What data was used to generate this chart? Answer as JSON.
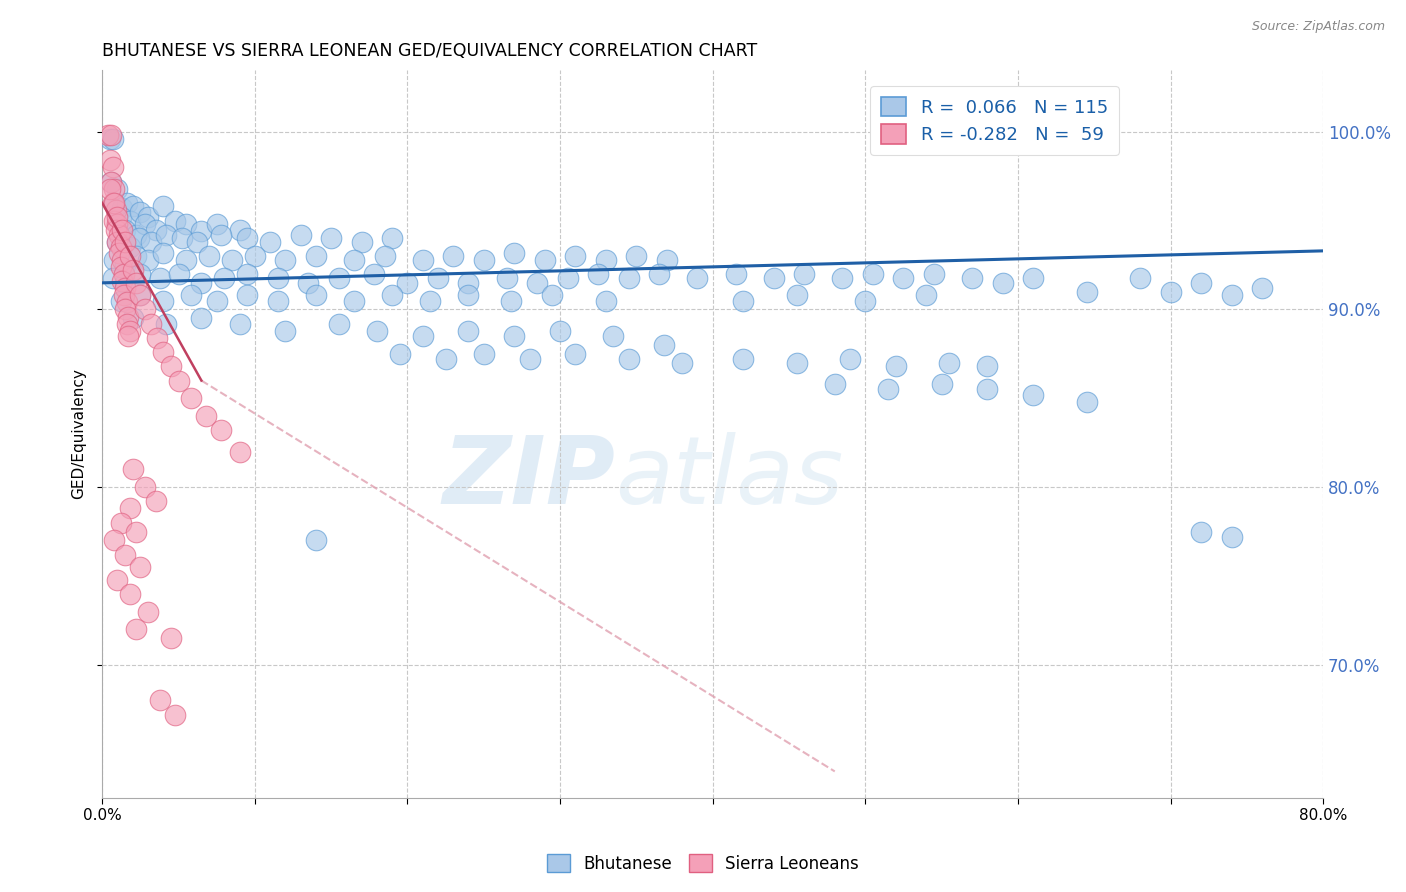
{
  "title": "BHUTANESE VS SIERRA LEONEAN GED/EQUIVALENCY CORRELATION CHART",
  "source": "Source: ZipAtlas.com",
  "ylabel": "GED/Equivalency",
  "legend_bottom": [
    "Bhutanese",
    "Sierra Leoneans"
  ],
  "blue_scatter_color": "#a8c8e8",
  "blue_edge_color": "#5b9bd5",
  "pink_scatter_color": "#f4a0b8",
  "pink_edge_color": "#e06080",
  "blue_line_color": "#1f5fa6",
  "pink_line_color": "#c04060",
  "pink_dash_color": "#e0a0b0",
  "watermark_color": "#ddeeff",
  "grid_color": "#c8c8c8",
  "background_color": "#ffffff",
  "xlim": [
    0.0,
    0.8
  ],
  "ylim": [
    0.625,
    1.035
  ],
  "blue_line": [
    0.0,
    0.915,
    0.8,
    0.933
  ],
  "pink_line_solid": [
    0.0,
    0.96,
    0.065,
    0.86
  ],
  "pink_line_dash": [
    0.065,
    0.86,
    0.48,
    0.64
  ],
  "blue_points": [
    [
      0.005,
      0.996
    ],
    [
      0.007,
      0.996
    ],
    [
      0.006,
      0.972
    ],
    [
      0.01,
      0.968
    ],
    [
      0.008,
      0.96
    ],
    [
      0.013,
      0.957
    ],
    [
      0.016,
      0.96
    ],
    [
      0.02,
      0.958
    ],
    [
      0.012,
      0.952
    ],
    [
      0.018,
      0.95
    ],
    [
      0.025,
      0.955
    ],
    [
      0.03,
      0.952
    ],
    [
      0.04,
      0.958
    ],
    [
      0.048,
      0.95
    ],
    [
      0.015,
      0.945
    ],
    [
      0.022,
      0.942
    ],
    [
      0.028,
      0.948
    ],
    [
      0.035,
      0.945
    ],
    [
      0.055,
      0.948
    ],
    [
      0.065,
      0.944
    ],
    [
      0.075,
      0.948
    ],
    [
      0.09,
      0.945
    ],
    [
      0.01,
      0.938
    ],
    [
      0.018,
      0.935
    ],
    [
      0.024,
      0.94
    ],
    [
      0.032,
      0.938
    ],
    [
      0.042,
      0.942
    ],
    [
      0.052,
      0.94
    ],
    [
      0.062,
      0.938
    ],
    [
      0.078,
      0.942
    ],
    [
      0.095,
      0.94
    ],
    [
      0.11,
      0.938
    ],
    [
      0.13,
      0.942
    ],
    [
      0.15,
      0.94
    ],
    [
      0.17,
      0.938
    ],
    [
      0.19,
      0.94
    ],
    [
      0.008,
      0.928
    ],
    [
      0.015,
      0.925
    ],
    [
      0.022,
      0.93
    ],
    [
      0.03,
      0.928
    ],
    [
      0.04,
      0.932
    ],
    [
      0.055,
      0.928
    ],
    [
      0.07,
      0.93
    ],
    [
      0.085,
      0.928
    ],
    [
      0.1,
      0.93
    ],
    [
      0.12,
      0.928
    ],
    [
      0.14,
      0.93
    ],
    [
      0.165,
      0.928
    ],
    [
      0.185,
      0.93
    ],
    [
      0.21,
      0.928
    ],
    [
      0.23,
      0.93
    ],
    [
      0.25,
      0.928
    ],
    [
      0.27,
      0.932
    ],
    [
      0.29,
      0.928
    ],
    [
      0.31,
      0.93
    ],
    [
      0.33,
      0.928
    ],
    [
      0.35,
      0.93
    ],
    [
      0.37,
      0.928
    ],
    [
      0.007,
      0.918
    ],
    [
      0.015,
      0.915
    ],
    [
      0.025,
      0.92
    ],
    [
      0.038,
      0.918
    ],
    [
      0.05,
      0.92
    ],
    [
      0.065,
      0.915
    ],
    [
      0.08,
      0.918
    ],
    [
      0.095,
      0.92
    ],
    [
      0.115,
      0.918
    ],
    [
      0.135,
      0.915
    ],
    [
      0.155,
      0.918
    ],
    [
      0.178,
      0.92
    ],
    [
      0.2,
      0.915
    ],
    [
      0.22,
      0.918
    ],
    [
      0.24,
      0.915
    ],
    [
      0.265,
      0.918
    ],
    [
      0.285,
      0.915
    ],
    [
      0.305,
      0.918
    ],
    [
      0.325,
      0.92
    ],
    [
      0.345,
      0.918
    ],
    [
      0.365,
      0.92
    ],
    [
      0.39,
      0.918
    ],
    [
      0.415,
      0.92
    ],
    [
      0.44,
      0.918
    ],
    [
      0.46,
      0.92
    ],
    [
      0.485,
      0.918
    ],
    [
      0.505,
      0.92
    ],
    [
      0.525,
      0.918
    ],
    [
      0.545,
      0.92
    ],
    [
      0.57,
      0.918
    ],
    [
      0.59,
      0.915
    ],
    [
      0.61,
      0.918
    ],
    [
      0.012,
      0.905
    ],
    [
      0.025,
      0.908
    ],
    [
      0.04,
      0.905
    ],
    [
      0.058,
      0.908
    ],
    [
      0.075,
      0.905
    ],
    [
      0.095,
      0.908
    ],
    [
      0.115,
      0.905
    ],
    [
      0.14,
      0.908
    ],
    [
      0.165,
      0.905
    ],
    [
      0.19,
      0.908
    ],
    [
      0.215,
      0.905
    ],
    [
      0.24,
      0.908
    ],
    [
      0.268,
      0.905
    ],
    [
      0.295,
      0.908
    ],
    [
      0.33,
      0.905
    ],
    [
      0.368,
      0.88
    ],
    [
      0.42,
      0.905
    ],
    [
      0.455,
      0.908
    ],
    [
      0.5,
      0.905
    ],
    [
      0.54,
      0.908
    ],
    [
      0.02,
      0.895
    ],
    [
      0.042,
      0.892
    ],
    [
      0.065,
      0.895
    ],
    [
      0.09,
      0.892
    ],
    [
      0.12,
      0.888
    ],
    [
      0.155,
      0.892
    ],
    [
      0.18,
      0.888
    ],
    [
      0.21,
      0.885
    ],
    [
      0.24,
      0.888
    ],
    [
      0.27,
      0.885
    ],
    [
      0.3,
      0.888
    ],
    [
      0.335,
      0.885
    ],
    [
      0.195,
      0.875
    ],
    [
      0.225,
      0.872
    ],
    [
      0.25,
      0.875
    ],
    [
      0.28,
      0.872
    ],
    [
      0.31,
      0.875
    ],
    [
      0.345,
      0.872
    ],
    [
      0.38,
      0.87
    ],
    [
      0.42,
      0.872
    ],
    [
      0.455,
      0.87
    ],
    [
      0.49,
      0.872
    ],
    [
      0.52,
      0.868
    ],
    [
      0.555,
      0.87
    ],
    [
      0.58,
      0.868
    ],
    [
      0.48,
      0.858
    ],
    [
      0.515,
      0.855
    ],
    [
      0.55,
      0.858
    ],
    [
      0.58,
      0.855
    ],
    [
      0.61,
      0.852
    ],
    [
      0.645,
      0.848
    ],
    [
      0.645,
      0.91
    ],
    [
      0.68,
      0.918
    ],
    [
      0.7,
      0.91
    ],
    [
      0.72,
      0.915
    ],
    [
      0.74,
      0.908
    ],
    [
      0.76,
      0.912
    ],
    [
      0.14,
      0.77
    ],
    [
      0.72,
      0.775
    ],
    [
      0.74,
      0.772
    ]
  ],
  "pink_points": [
    [
      0.004,
      0.998
    ],
    [
      0.006,
      0.998
    ],
    [
      0.005,
      0.984
    ],
    [
      0.007,
      0.98
    ],
    [
      0.006,
      0.972
    ],
    [
      0.008,
      0.968
    ],
    [
      0.007,
      0.96
    ],
    [
      0.009,
      0.956
    ],
    [
      0.008,
      0.95
    ],
    [
      0.01,
      0.948
    ],
    [
      0.009,
      0.945
    ],
    [
      0.011,
      0.942
    ],
    [
      0.01,
      0.938
    ],
    [
      0.012,
      0.935
    ],
    [
      0.011,
      0.932
    ],
    [
      0.013,
      0.928
    ],
    [
      0.012,
      0.924
    ],
    [
      0.014,
      0.92
    ],
    [
      0.013,
      0.916
    ],
    [
      0.015,
      0.912
    ],
    [
      0.014,
      0.908
    ],
    [
      0.016,
      0.904
    ],
    [
      0.015,
      0.9
    ],
    [
      0.017,
      0.896
    ],
    [
      0.016,
      0.892
    ],
    [
      0.018,
      0.888
    ],
    [
      0.017,
      0.885
    ],
    [
      0.005,
      0.968
    ],
    [
      0.008,
      0.96
    ],
    [
      0.01,
      0.952
    ],
    [
      0.013,
      0.945
    ],
    [
      0.015,
      0.938
    ],
    [
      0.018,
      0.93
    ],
    [
      0.02,
      0.922
    ],
    [
      0.022,
      0.915
    ],
    [
      0.025,
      0.908
    ],
    [
      0.028,
      0.9
    ],
    [
      0.032,
      0.892
    ],
    [
      0.036,
      0.884
    ],
    [
      0.04,
      0.876
    ],
    [
      0.045,
      0.868
    ],
    [
      0.05,
      0.86
    ],
    [
      0.058,
      0.85
    ],
    [
      0.068,
      0.84
    ],
    [
      0.078,
      0.832
    ],
    [
      0.09,
      0.82
    ],
    [
      0.02,
      0.81
    ],
    [
      0.028,
      0.8
    ],
    [
      0.035,
      0.792
    ],
    [
      0.018,
      0.788
    ],
    [
      0.012,
      0.78
    ],
    [
      0.022,
      0.775
    ],
    [
      0.008,
      0.77
    ],
    [
      0.015,
      0.762
    ],
    [
      0.025,
      0.755
    ],
    [
      0.01,
      0.748
    ],
    [
      0.018,
      0.74
    ],
    [
      0.03,
      0.73
    ],
    [
      0.022,
      0.72
    ],
    [
      0.045,
      0.715
    ],
    [
      0.038,
      0.68
    ],
    [
      0.048,
      0.672
    ]
  ]
}
